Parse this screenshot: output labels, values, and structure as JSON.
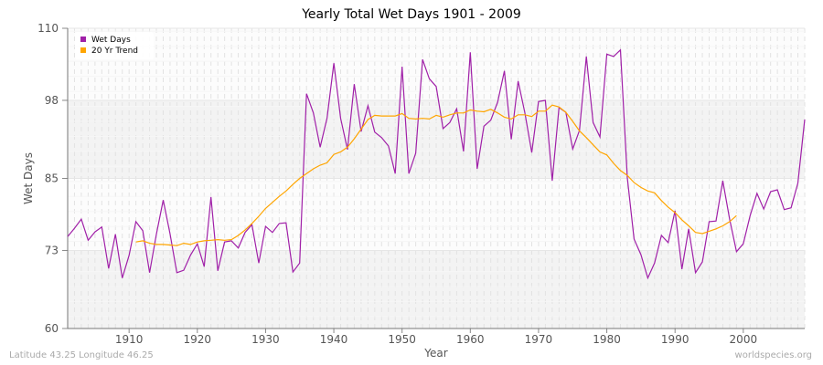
{
  "chart_data": {
    "type": "line",
    "title": "Yearly Total Wet Days 1901 - 2009",
    "xlabel": "Year",
    "ylabel": "Wet Days",
    "xlim": [
      1901,
      2009
    ],
    "ylim": [
      60,
      110
    ],
    "yticks": [
      60,
      73,
      85,
      98,
      110
    ],
    "xticks": [
      1910,
      1920,
      1930,
      1940,
      1950,
      1960,
      1970,
      1980,
      1990,
      2000
    ],
    "grid": true,
    "legend_position": "top-left",
    "series": [
      {
        "name": "Wet Days",
        "color": "#a020a8",
        "x_start": 1901,
        "values": [
          75.3,
          76.7,
          78.2,
          74.7,
          76.1,
          76.9,
          70.0,
          75.7,
          68.4,
          72.2,
          77.8,
          76.3,
          69.3,
          75.7,
          81.4,
          75.8,
          69.3,
          69.7,
          72.2,
          74.1,
          70.3,
          81.9,
          69.6,
          74.4,
          74.6,
          73.4,
          76.0,
          77.3,
          70.9,
          77.0,
          76.0,
          77.5,
          77.6,
          69.4,
          70.9,
          99.1,
          95.9,
          90.2,
          95.0,
          104.2,
          95.0,
          89.8,
          100.7,
          92.8,
          97.1,
          92.7,
          91.8,
          90.4,
          85.8,
          103.6,
          85.8,
          89.2,
          104.8,
          101.6,
          100.3,
          93.3,
          94.3,
          96.6,
          89.5,
          106.0,
          86.6,
          93.7,
          94.7,
          97.7,
          102.9,
          91.5,
          101.2,
          95.9,
          89.3,
          97.8,
          98.0,
          84.6,
          96.8,
          96.0,
          89.9,
          93.0,
          105.3,
          94.3,
          91.9,
          105.7,
          105.3,
          106.4,
          85.1,
          74.9,
          72.3,
          68.4,
          70.9,
          75.5,
          74.3,
          79.6,
          69.9,
          76.6,
          69.3,
          71.1,
          77.8,
          77.9,
          84.6,
          78.2,
          72.8,
          74.1,
          78.8,
          82.5,
          79.9,
          82.8,
          83.1,
          79.8,
          80.1,
          84.2,
          94.8
        ]
      },
      {
        "name": "20 Yr Trend",
        "color": "#ffa500",
        "x_start": 1911,
        "values": [
          74.4,
          74.6,
          74.2,
          74.0,
          74.0,
          73.9,
          73.8,
          74.2,
          74.0,
          74.4,
          74.6,
          74.7,
          74.8,
          74.7,
          74.8,
          75.5,
          76.4,
          77.5,
          78.7,
          80.0,
          81.0,
          82.0,
          82.9,
          84.0,
          85.0,
          85.8,
          86.6,
          87.2,
          87.6,
          89.0,
          89.4,
          90.2,
          91.6,
          93.2,
          94.8,
          95.5,
          95.4,
          95.4,
          95.4,
          95.8,
          95.0,
          94.9,
          95.0,
          94.9,
          95.5,
          95.2,
          95.6,
          95.9,
          95.9,
          96.4,
          96.2,
          96.1,
          96.5,
          95.9,
          95.2,
          94.9,
          95.6,
          95.6,
          95.3,
          96.2,
          96.2,
          97.2,
          96.9,
          96.0,
          94.5,
          92.9,
          91.8,
          90.6,
          89.4,
          88.9,
          87.5,
          86.3,
          85.5,
          84.3,
          83.5,
          82.9,
          82.6,
          81.3,
          80.2,
          79.3,
          78.1,
          77.1,
          76.0,
          75.8,
          76.2,
          76.6,
          77.1,
          77.8,
          78.8
        ]
      }
    ]
  },
  "footer": {
    "left": "Latitude 43.25 Longitude 46.25",
    "right": "worldspecies.org"
  }
}
